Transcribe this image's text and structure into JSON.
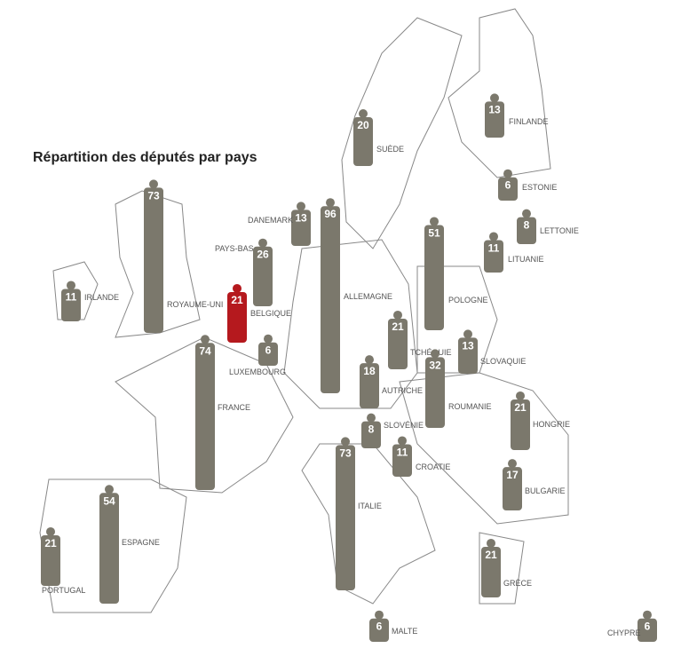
{
  "title": "Répartition des députés par pays",
  "countries": [
    {
      "name": "IRLANDE",
      "seats": 11,
      "color": "#7b786c"
    },
    {
      "name": "ROYAUME-UNI",
      "seats": 73,
      "color": "#7b786c"
    },
    {
      "name": "PAYS-BAS",
      "seats": 26,
      "color": "#7b786c"
    },
    {
      "name": "BELGIQUE",
      "seats": 21,
      "color": "#b5191e"
    },
    {
      "name": "LUXEMBOURG",
      "seats": 6,
      "color": "#7b786c"
    },
    {
      "name": "FRANCE",
      "seats": 74,
      "color": "#7b786c"
    },
    {
      "name": "ESPAGNE",
      "seats": 54,
      "color": "#7b786c"
    },
    {
      "name": "PORTUGAL",
      "seats": 21,
      "color": "#7b786c"
    },
    {
      "name": "DANEMARK",
      "seats": 13,
      "color": "#7b786c"
    },
    {
      "name": "ALLEMAGNE",
      "seats": 96,
      "color": "#7b786c"
    },
    {
      "name": "SUÈDE",
      "seats": 20,
      "color": "#7b786c"
    },
    {
      "name": "FINLANDE",
      "seats": 13,
      "color": "#7b786c"
    },
    {
      "name": "ESTONIE",
      "seats": 6,
      "color": "#7b786c"
    },
    {
      "name": "LETTONIE",
      "seats": 8,
      "color": "#7b786c"
    },
    {
      "name": "LITUANIE",
      "seats": 11,
      "color": "#7b786c"
    },
    {
      "name": "POLOGNE",
      "seats": 51,
      "color": "#7b786c"
    },
    {
      "name": "TCHÉQUIE",
      "seats": 21,
      "color": "#7b786c"
    },
    {
      "name": "SLOVAQUIE",
      "seats": 13,
      "color": "#7b786c"
    },
    {
      "name": "AUTRICHE",
      "seats": 18,
      "color": "#7b786c"
    },
    {
      "name": "ROUMANIE",
      "seats": 32,
      "color": "#7b786c"
    },
    {
      "name": "HONGRIE",
      "seats": 21,
      "color": "#7b786c"
    },
    {
      "name": "SLOVÉNIE",
      "seats": 8,
      "color": "#7b786c"
    },
    {
      "name": "CROATIE",
      "seats": 11,
      "color": "#7b786c"
    },
    {
      "name": "ITALIE",
      "seats": 73,
      "color": "#7b786c"
    },
    {
      "name": "BULGARIE",
      "seats": 17,
      "color": "#7b786c"
    },
    {
      "name": "GRÈCE",
      "seats": 21,
      "color": "#7b786c"
    },
    {
      "name": "MALTE",
      "seats": 6,
      "color": "#7b786c"
    },
    {
      "name": "CHYPRE",
      "seats": 6,
      "color": "#7b786c"
    }
  ]
}
